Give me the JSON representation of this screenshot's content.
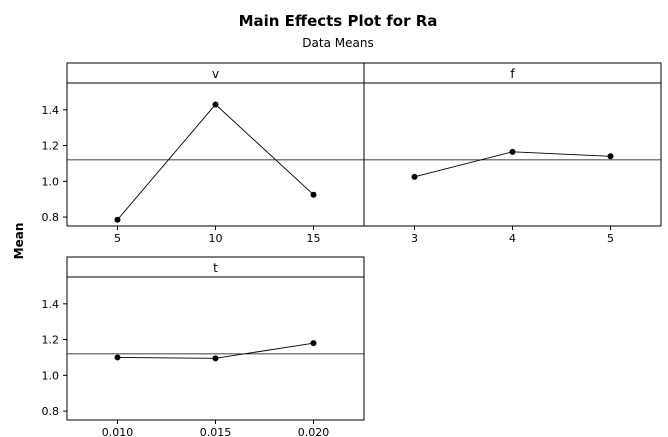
{
  "chart_data": {
    "type": "line",
    "title": "Main Effects Plot for Ra",
    "subtitle": "Data Means",
    "ylabel": "Mean",
    "grand_mean": 1.12,
    "ylim": [
      0.75,
      1.55
    ],
    "yticks": [
      "0.8",
      "1.0",
      "1.2",
      "1.4"
    ],
    "panels": [
      {
        "name": "v",
        "categories": [
          "5",
          "10",
          "15"
        ],
        "values": [
          0.785,
          1.43,
          0.925
        ]
      },
      {
        "name": "f",
        "categories": [
          "3",
          "4",
          "5"
        ],
        "values": [
          1.025,
          1.165,
          1.14
        ]
      },
      {
        "name": "t",
        "categories": [
          "0.010",
          "0.015",
          "0.020"
        ],
        "values": [
          1.1,
          1.095,
          1.18
        ]
      }
    ]
  }
}
